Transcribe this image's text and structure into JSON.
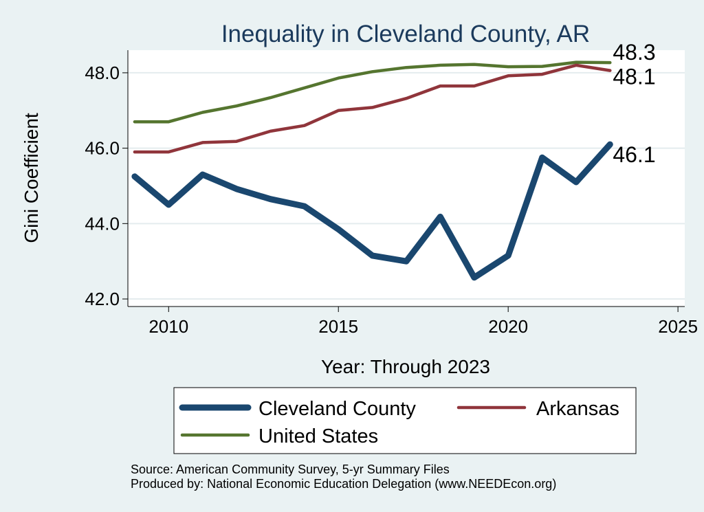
{
  "chart_data": {
    "type": "line",
    "title": "Inequality in Cleveland County, AR",
    "xlabel": "Year: Through 2023",
    "ylabel": "Gini Coefficient",
    "xlim": [
      2008.8,
      2025.2
    ],
    "ylim": [
      41.8,
      48.6
    ],
    "xticks": [
      2010,
      2015,
      2020,
      2025
    ],
    "yticks": [
      42,
      44,
      46,
      48
    ],
    "ytick_labels": [
      "42.0",
      "44.0",
      "46.0",
      "48.0"
    ],
    "grid": true,
    "legend_position": "bottom",
    "x": [
      2009,
      2010,
      2011,
      2012,
      2013,
      2014,
      2015,
      2016,
      2017,
      2018,
      2019,
      2020,
      2021,
      2022,
      2023
    ],
    "series": [
      {
        "name": "Cleveland County",
        "color": "#1a476f",
        "values": [
          45.25,
          44.5,
          45.3,
          44.92,
          44.65,
          44.46,
          43.85,
          43.15,
          43.0,
          44.18,
          42.57,
          43.15,
          45.75,
          45.1,
          46.1
        ],
        "end_label": "46.1"
      },
      {
        "name": "Arkansas",
        "color": "#90353b",
        "values": [
          45.9,
          45.9,
          46.15,
          46.18,
          46.45,
          46.6,
          47.0,
          47.08,
          47.32,
          47.65,
          47.65,
          47.92,
          47.96,
          48.2,
          48.06
        ],
        "end_label": "48.1"
      },
      {
        "name": "United States",
        "color": "#55752f",
        "values": [
          46.7,
          46.7,
          46.95,
          47.12,
          47.34,
          47.6,
          47.86,
          48.03,
          48.14,
          48.2,
          48.22,
          48.16,
          48.17,
          48.28,
          48.27
        ],
        "end_label": "48.3"
      }
    ],
    "source_lines": [
      "Source: American Community Survey, 5-yr Summary Files",
      "Produced by: National Economic Education Delegation (www.NEEDEcon.org)"
    ]
  }
}
